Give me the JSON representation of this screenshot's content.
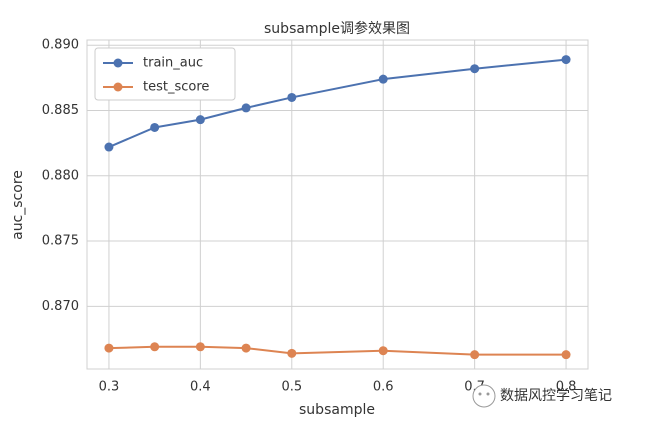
{
  "chart_data": {
    "type": "line",
    "title": "subsample调参效果图",
    "x_label": "subsample",
    "y_label": "auc_score",
    "x": [
      0.3,
      0.35,
      0.4,
      0.45,
      0.5,
      0.6,
      0.7,
      0.8
    ],
    "series": [
      {
        "name": "train_auc",
        "color": "#4c72b0",
        "values": [
          0.8822,
          0.8837,
          0.8843,
          0.8852,
          0.886,
          0.8874,
          0.8882,
          0.8889
        ]
      },
      {
        "name": "test_score",
        "color": "#dd8452",
        "values": [
          0.8668,
          0.8669,
          0.8669,
          0.8668,
          0.8664,
          0.8666,
          0.8663,
          0.8663
        ]
      }
    ],
    "xlim": [
      0.276,
      0.824
    ],
    "xticks": [
      0.3,
      0.4,
      0.5,
      0.6,
      0.7,
      0.8
    ],
    "ylim": [
      0.8652,
      0.8904
    ],
    "yticks": [
      {
        "value": 0.87,
        "label": "0.870"
      },
      {
        "value": 0.875,
        "label": "0.875"
      },
      {
        "value": 0.88,
        "label": "0.880"
      },
      {
        "value": 0.885,
        "label": "0.885"
      },
      {
        "value": 0.89,
        "label": "0.890"
      }
    ],
    "grid": true,
    "legend": "upper left"
  },
  "watermark": "数据风控学习笔记"
}
